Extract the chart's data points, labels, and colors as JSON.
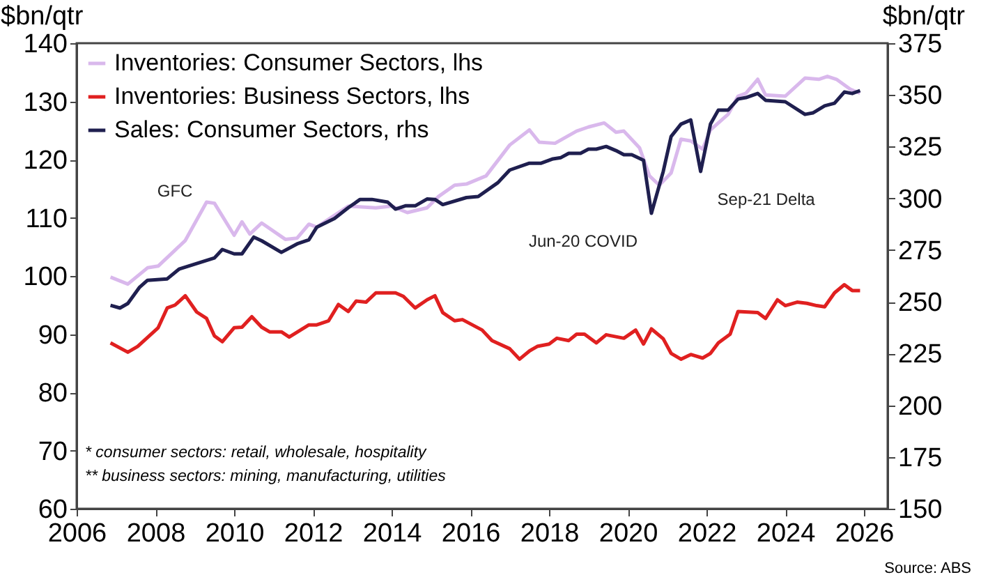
{
  "chart_data": {
    "type": "line",
    "ylabel": "$bn/qtr",
    "y2label": "$bn/qtr",
    "xlim": [
      2006,
      2026.6
    ],
    "xticks": [
      2006,
      2008,
      2010,
      2012,
      2014,
      2016,
      2018,
      2020,
      2022,
      2024,
      2026
    ],
    "ylim": [
      60,
      140
    ],
    "yticks": [
      60,
      70,
      80,
      90,
      100,
      110,
      120,
      130,
      140
    ],
    "y2lim": [
      150,
      375
    ],
    "y2ticks": [
      150,
      175,
      200,
      225,
      250,
      275,
      300,
      325,
      350,
      375
    ],
    "grid": false,
    "legend": "top left",
    "line_style": "solid",
    "marker": "none",
    "series": [
      {
        "name": "Inventories: Consumer Sectors, lhs",
        "color": "#d9b8ec",
        "x": [
          2006.86,
          2007.3,
          2007.8,
          2008.07,
          2008.76,
          2009.3,
          2009.5,
          2010.0,
          2010.2,
          2010.4,
          2010.7,
          2011.3,
          2011.6,
          2011.9,
          2012.1,
          2012.9,
          2013.6,
          2014.0,
          2014.4,
          2014.9,
          2015.2,
          2015.6,
          2015.9,
          2016.4,
          2017.0,
          2017.5,
          2017.75,
          2018.15,
          2018.7,
          2019.0,
          2019.4,
          2019.7,
          2019.9,
          2020.3,
          2020.55,
          2020.8,
          2021.1,
          2021.35,
          2021.6,
          2021.9,
          2022.1,
          2022.55,
          2022.8,
          2023.0,
          2023.3,
          2023.5,
          2024.0,
          2024.5,
          2024.85,
          2025.07,
          2025.3,
          2025.65,
          2025.9
        ],
        "values": [
          99.8,
          98.6,
          101.4,
          101.7,
          106.1,
          112.7,
          112.5,
          107.0,
          109.3,
          107.2,
          109.1,
          106.3,
          106.5,
          108.9,
          108.4,
          112.0,
          111.7,
          112.0,
          110.9,
          111.7,
          113.7,
          115.6,
          115.8,
          117.2,
          122.5,
          125.1,
          123.0,
          122.8,
          124.9,
          125.6,
          126.3,
          124.7,
          124.9,
          122.0,
          117.2,
          115.6,
          117.7,
          123.5,
          123.2,
          121.8,
          125.1,
          127.8,
          130.9,
          131.4,
          133.8,
          131.1,
          130.9,
          134.0,
          133.8,
          134.3,
          133.8,
          132.1,
          131.4
        ]
      },
      {
        "name": "Inventories: Business Sectors, lhs",
        "color": "#e02020",
        "x": [
          2006.86,
          2007.3,
          2007.55,
          2008.07,
          2008.3,
          2008.5,
          2008.76,
          2009.05,
          2009.3,
          2009.5,
          2009.7,
          2010.0,
          2010.2,
          2010.45,
          2010.7,
          2010.9,
          2011.2,
          2011.4,
          2011.9,
          2012.1,
          2012.4,
          2012.65,
          2012.9,
          2013.1,
          2013.35,
          2013.6,
          2014.1,
          2014.3,
          2014.6,
          2014.9,
          2015.1,
          2015.3,
          2015.6,
          2015.8,
          2016.3,
          2016.55,
          2017.0,
          2017.25,
          2017.5,
          2017.7,
          2018.0,
          2018.2,
          2018.5,
          2018.7,
          2018.9,
          2019.2,
          2019.45,
          2019.9,
          2020.2,
          2020.4,
          2020.6,
          2020.9,
          2021.1,
          2021.35,
          2021.6,
          2021.9,
          2022.1,
          2022.3,
          2022.6,
          2022.8,
          2023.3,
          2023.5,
          2023.8,
          2024.0,
          2024.3,
          2024.55,
          2024.8,
          2025.0,
          2025.25,
          2025.5,
          2025.7,
          2025.9
        ],
        "values": [
          88.5,
          86.9,
          87.9,
          91.1,
          94.5,
          95.0,
          96.6,
          93.8,
          92.7,
          89.7,
          88.7,
          91.1,
          91.2,
          93.0,
          91.2,
          90.4,
          90.4,
          89.5,
          91.6,
          91.6,
          92.3,
          95.1,
          93.9,
          95.7,
          95.5,
          97.1,
          97.1,
          96.5,
          94.5,
          95.9,
          96.6,
          93.7,
          92.3,
          92.5,
          90.7,
          88.9,
          87.5,
          85.7,
          87.1,
          87.9,
          88.3,
          89.3,
          88.9,
          90.0,
          90.0,
          88.5,
          89.9,
          89.3,
          90.7,
          88.3,
          90.9,
          89.2,
          86.7,
          85.7,
          86.5,
          85.9,
          86.7,
          88.5,
          90.0,
          93.9,
          93.7,
          92.7,
          95.9,
          94.9,
          95.5,
          95.3,
          94.9,
          94.7,
          97.1,
          98.5,
          97.5,
          97.5
        ]
      },
      {
        "name": "Sales: Consumer Sectors, rhs",
        "color": "#1f1f4f",
        "axis": "y2",
        "x": [
          2006.86,
          2007.1,
          2007.3,
          2007.6,
          2007.8,
          2008.3,
          2008.6,
          2009.5,
          2009.7,
          2010.0,
          2010.2,
          2010.5,
          2010.7,
          2011.2,
          2011.6,
          2011.9,
          2012.1,
          2012.55,
          2012.9,
          2013.2,
          2013.5,
          2013.9,
          2014.1,
          2014.35,
          2014.6,
          2014.9,
          2015.1,
          2015.3,
          2015.9,
          2016.2,
          2016.7,
          2017.0,
          2017.5,
          2017.8,
          2018.1,
          2018.3,
          2018.5,
          2018.8,
          2019.0,
          2019.2,
          2019.45,
          2019.7,
          2019.9,
          2020.1,
          2020.4,
          2020.6,
          2020.9,
          2021.1,
          2021.35,
          2021.6,
          2021.85,
          2022.1,
          2022.3,
          2022.55,
          2022.8,
          2023.0,
          2023.3,
          2023.5,
          2024.0,
          2024.5,
          2024.7,
          2025.0,
          2025.25,
          2025.5,
          2025.7,
          2025.9
        ],
        "values": [
          248.3,
          247.0,
          249.2,
          257.1,
          260.4,
          261.1,
          265.8,
          271.2,
          275.3,
          273.2,
          273.2,
          281.3,
          279.5,
          273.9,
          278.0,
          280.0,
          286.1,
          290.3,
          295.5,
          299.5,
          299.5,
          298.2,
          294.8,
          296.4,
          296.4,
          299.7,
          299.5,
          297.0,
          300.4,
          300.9,
          307.6,
          313.7,
          317.0,
          317.0,
          319.1,
          319.7,
          321.8,
          321.8,
          323.8,
          323.8,
          325.1,
          323.1,
          321.1,
          321.1,
          318.4,
          292.8,
          313.0,
          329.9,
          335.9,
          337.9,
          313.0,
          335.9,
          342.7,
          342.7,
          348.0,
          348.7,
          350.7,
          347.4,
          346.7,
          340.6,
          341.3,
          344.7,
          346.0,
          351.4,
          350.7,
          352.1
        ]
      }
    ],
    "annotations": [
      {
        "text": "GFC",
        "x": 2009.3,
        "y": 112.7
      },
      {
        "text": "Jun-20 COVID",
        "x": 2020.6,
        "y": 110.8
      },
      {
        "text": "Sep-21 Delta",
        "x": 2021.85,
        "y": 118.0
      },
      "* consumer sectors: retail, wholesale, hospitality",
      "** business sectors: mining, manufacturing, utilities",
      "Source: ABS"
    ]
  }
}
